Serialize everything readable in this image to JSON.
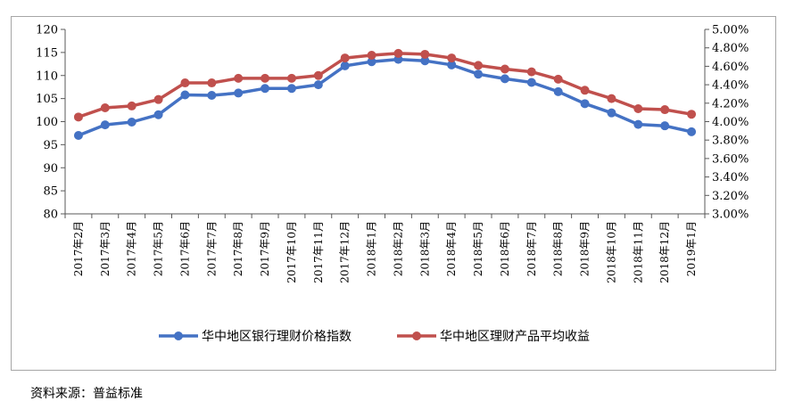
{
  "chart_data": {
    "type": "line",
    "categories": [
      "2017年2月",
      "2017年3月",
      "2017年4月",
      "2017年5月",
      "2017年6月",
      "2017年7月",
      "2017年8月",
      "2017年9月",
      "2017年10月",
      "2017年11月",
      "2017年12月",
      "2018年1月",
      "2018年2月",
      "2018年3月",
      "2018年4月",
      "2018年5月",
      "2018年6月",
      "2018年7月",
      "2018年8月",
      "2018年9月",
      "2018年10月",
      "2018年11月",
      "2018年12月",
      "2019年1月"
    ],
    "series": [
      {
        "name": "华中地区银行理财价格指数",
        "axis": "left",
        "color": "#4472c4",
        "values": [
          97.0,
          99.3,
          99.9,
          101.5,
          105.8,
          105.7,
          106.2,
          107.2,
          107.2,
          108.0,
          112.1,
          113.0,
          113.5,
          113.2,
          112.3,
          110.3,
          109.3,
          108.5,
          106.5,
          103.9,
          101.9,
          99.4,
          99.1,
          97.8
        ]
      },
      {
        "name": "华中地区理财产品平均收益",
        "axis": "right",
        "color": "#c0504d",
        "values": [
          4.05,
          4.15,
          4.17,
          4.24,
          4.42,
          4.42,
          4.47,
          4.47,
          4.47,
          4.5,
          4.69,
          4.72,
          4.74,
          4.73,
          4.69,
          4.61,
          4.57,
          4.54,
          4.46,
          4.34,
          4.25,
          4.14,
          4.13,
          4.08
        ]
      }
    ],
    "y_left": {
      "min": 80,
      "max": 120,
      "step": 5,
      "ticks": [
        "80",
        "85",
        "90",
        "95",
        "100",
        "105",
        "110",
        "115",
        "120"
      ]
    },
    "y_right": {
      "min": 3.0,
      "max": 5.0,
      "step": 0.2,
      "ticks": [
        "3.00%",
        "3.20%",
        "3.40%",
        "3.60%",
        "3.80%",
        "4.00%",
        "4.20%",
        "4.40%",
        "4.60%",
        "4.80%",
        "5.00%"
      ]
    },
    "legend_position": "bottom",
    "grid": false
  },
  "source_note": "资料来源：普益标准"
}
